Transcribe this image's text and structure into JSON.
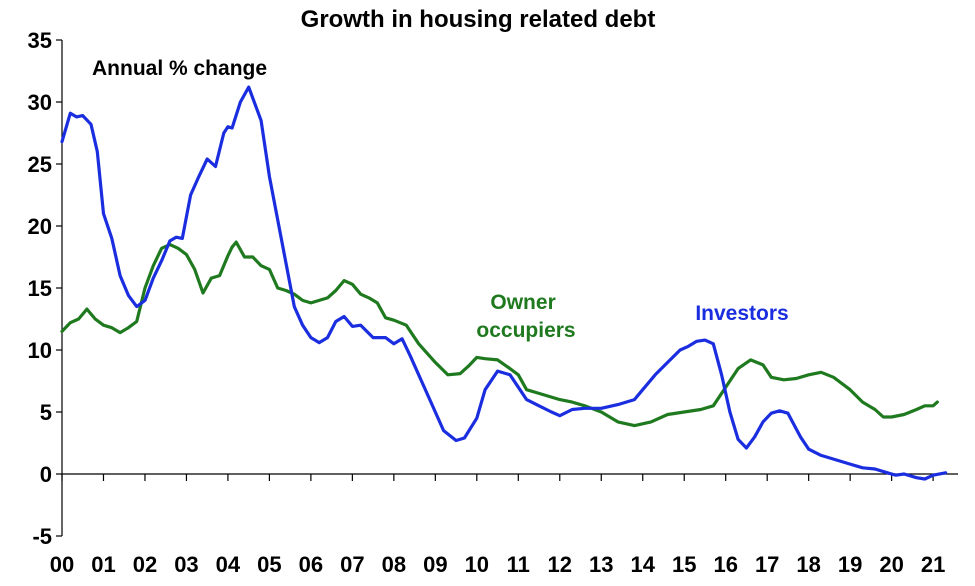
{
  "chart_data": {
    "type": "line",
    "title": "Growth in housing related debt",
    "subtitle": "Annual % change",
    "xlabel": "",
    "ylabel": "",
    "xlim": [
      2000,
      2021.6
    ],
    "ylim": [
      -5,
      35
    ],
    "y_ticks": [
      -5,
      0,
      5,
      10,
      15,
      20,
      25,
      30,
      35
    ],
    "x_tick_labels": [
      "00",
      "01",
      "02",
      "03",
      "04",
      "05",
      "06",
      "07",
      "08",
      "09",
      "10",
      "11",
      "12",
      "13",
      "14",
      "15",
      "16",
      "17",
      "18",
      "19",
      "20",
      "21"
    ],
    "grid": false,
    "legend": "none (series labelled directly on chart)",
    "series": [
      {
        "name": "Investors",
        "color": "#1a2ee0",
        "x": [
          2000.0,
          2000.2,
          2000.35,
          2000.5,
          2000.7,
          2000.85,
          2001.0,
          2001.2,
          2001.4,
          2001.6,
          2001.8,
          2002.0,
          2002.2,
          2002.4,
          2002.6,
          2002.75,
          2002.9,
          2003.1,
          2003.3,
          2003.5,
          2003.7,
          2003.9,
          2004.0,
          2004.1,
          2004.3,
          2004.5,
          2004.8,
          2005.0,
          2005.2,
          2005.4,
          2005.6,
          2005.8,
          2006.0,
          2006.2,
          2006.4,
          2006.6,
          2006.8,
          2007.0,
          2007.2,
          2007.5,
          2007.8,
          2008.0,
          2008.2,
          2008.4,
          2008.6,
          2008.8,
          2009.0,
          2009.2,
          2009.5,
          2009.7,
          2010.0,
          2010.2,
          2010.5,
          2010.8,
          2011.0,
          2011.2,
          2011.5,
          2011.8,
          2012.0,
          2012.3,
          2012.6,
          2013.0,
          2013.4,
          2013.8,
          2014.0,
          2014.3,
          2014.6,
          2014.9,
          2015.1,
          2015.3,
          2015.5,
          2015.7,
          2015.9,
          2016.1,
          2016.3,
          2016.5,
          2016.7,
          2016.9,
          2017.1,
          2017.3,
          2017.5,
          2017.8,
          2018.0,
          2018.3,
          2018.6,
          2019.0,
          2019.3,
          2019.6,
          2019.9,
          2020.1,
          2020.3,
          2020.6,
          2020.8,
          2021.0,
          2021.3
        ],
        "values": [
          26.8,
          29.1,
          28.8,
          28.9,
          28.2,
          26,
          21,
          19,
          16,
          14.4,
          13.5,
          14,
          15.8,
          17.2,
          18.8,
          19.1,
          19,
          22.5,
          24,
          25.4,
          24.8,
          27.5,
          28,
          27.9,
          30,
          31.2,
          28.5,
          24,
          20.5,
          17,
          13.5,
          12,
          11,
          10.6,
          11,
          12.3,
          12.7,
          11.9,
          12,
          11,
          11,
          10.5,
          10.9,
          9.5,
          8,
          6.5,
          5,
          3.5,
          2.7,
          2.9,
          4.5,
          6.8,
          8.3,
          8,
          7,
          6,
          5.5,
          5,
          4.7,
          5.2,
          5.3,
          5.3,
          5.6,
          6,
          6.8,
          8,
          9,
          10,
          10.3,
          10.7,
          10.8,
          10.5,
          8,
          5,
          2.8,
          2.1,
          3,
          4.2,
          4.9,
          5.1,
          4.9,
          3,
          2,
          1.5,
          1.2,
          0.8,
          0.5,
          0.4,
          0.1,
          -0.1,
          0,
          -0.3,
          -0.4,
          -0.1,
          0.1
        ]
      },
      {
        "name": "Owner occupiers",
        "color": "#1f7a1f",
        "x": [
          2000.0,
          2000.2,
          2000.4,
          2000.6,
          2000.8,
          2001.0,
          2001.2,
          2001.4,
          2001.6,
          2001.8,
          2002.0,
          2002.2,
          2002.4,
          2002.6,
          2002.8,
          2003.0,
          2003.2,
          2003.4,
          2003.6,
          2003.8,
          2004.0,
          2004.1,
          2004.2,
          2004.4,
          2004.6,
          2004.8,
          2005.0,
          2005.2,
          2005.4,
          2005.6,
          2005.8,
          2006.0,
          2006.2,
          2006.4,
          2006.6,
          2006.8,
          2007.0,
          2007.2,
          2007.4,
          2007.6,
          2007.8,
          2008.0,
          2008.3,
          2008.6,
          2009.0,
          2009.3,
          2009.6,
          2009.8,
          2010.0,
          2010.2,
          2010.5,
          2010.8,
          2011.0,
          2011.2,
          2011.5,
          2011.8,
          2012.0,
          2012.3,
          2012.6,
          2013.0,
          2013.4,
          2013.8,
          2014.2,
          2014.6,
          2015.0,
          2015.4,
          2015.7,
          2016.0,
          2016.3,
          2016.6,
          2016.9,
          2017.1,
          2017.4,
          2017.7,
          2018.0,
          2018.3,
          2018.6,
          2019.0,
          2019.3,
          2019.6,
          2019.8,
          2020.0,
          2020.3,
          2020.6,
          2020.8,
          2021.0,
          2021.1
        ],
        "values": [
          11.5,
          12.2,
          12.5,
          13.3,
          12.5,
          12,
          11.8,
          11.4,
          11.8,
          12.3,
          15,
          16.8,
          18.2,
          18.5,
          18.2,
          17.7,
          16.5,
          14.6,
          15.8,
          16,
          17.6,
          18.3,
          18.7,
          17.5,
          17.5,
          16.8,
          16.5,
          15,
          14.8,
          14.5,
          14,
          13.8,
          14,
          14.2,
          14.8,
          15.6,
          15.3,
          14.5,
          14.2,
          13.8,
          12.6,
          12.4,
          12,
          10.5,
          9,
          8,
          8.1,
          8.7,
          9.4,
          9.3,
          9.2,
          8.5,
          8,
          6.8,
          6.5,
          6.2,
          6,
          5.8,
          5.5,
          5,
          4.2,
          3.9,
          4.2,
          4.8,
          5,
          5.2,
          5.5,
          7,
          8.5,
          9.2,
          8.8,
          7.8,
          7.6,
          7.7,
          8,
          8.2,
          7.8,
          6.8,
          5.8,
          5.2,
          4.6,
          4.6,
          4.8,
          5.2,
          5.5,
          5.5,
          5.8
        ]
      }
    ],
    "annotations": [
      {
        "text_lines": [
          "Owner",
          "occupiers"
        ],
        "color": "#1f7a1f"
      },
      {
        "text_lines": [
          "Investors"
        ],
        "color": "#1a2ee0"
      }
    ]
  }
}
